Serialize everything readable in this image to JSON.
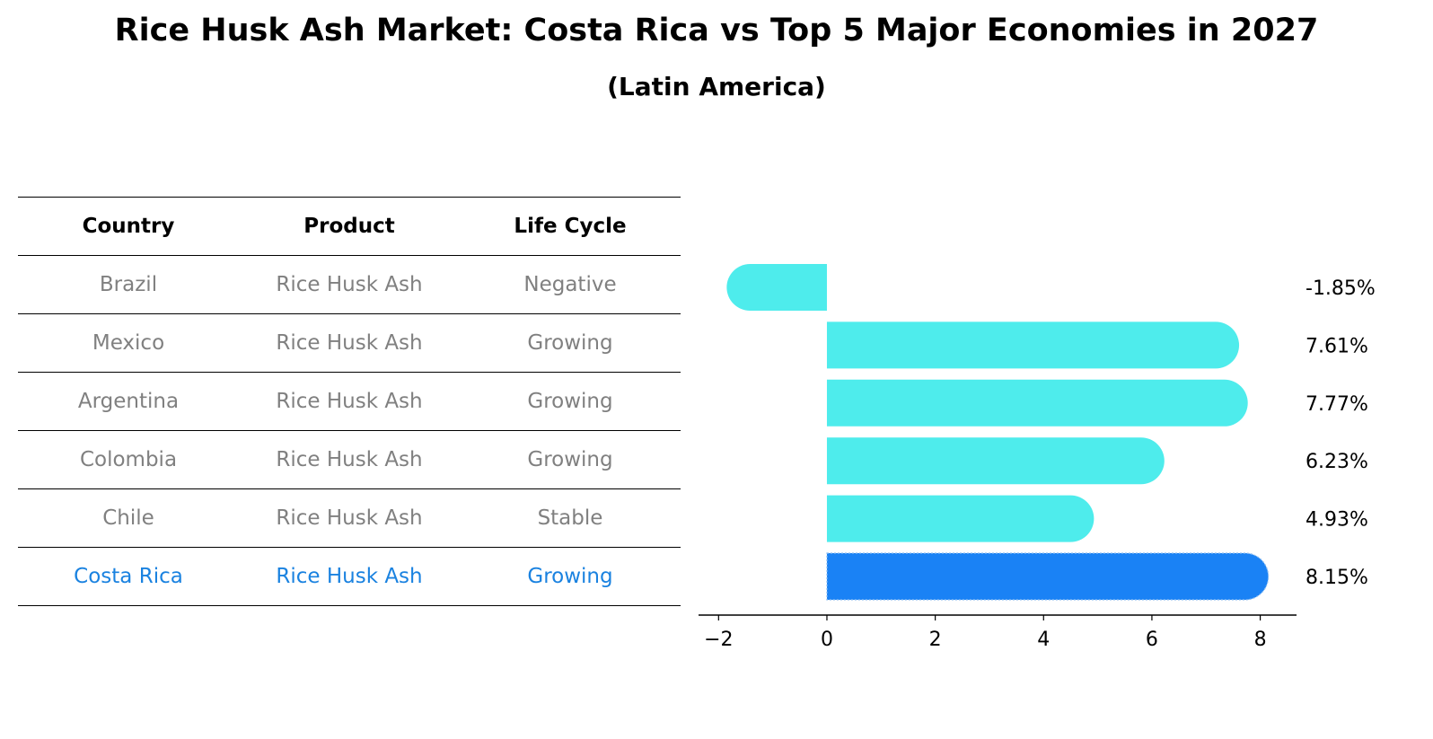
{
  "title": "Rice Husk Ash Market: Costa Rica vs Top 5 Major Economies in 2027",
  "subtitle": "(Latin America)",
  "table": {
    "headers": [
      "Country",
      "Product",
      "Life Cycle"
    ],
    "rows": [
      {
        "country": "Brazil",
        "product": "Rice Husk Ash",
        "life_cycle": "Negative"
      },
      {
        "country": "Mexico",
        "product": "Rice Husk Ash",
        "life_cycle": "Growing"
      },
      {
        "country": "Argentina",
        "product": "Rice Husk Ash",
        "life_cycle": "Growing"
      },
      {
        "country": "Colombia",
        "product": "Rice Husk Ash",
        "life_cycle": "Growing"
      },
      {
        "country": "Chile",
        "product": "Rice Husk Ash",
        "life_cycle": "Stable"
      },
      {
        "country": "Costa Rica",
        "product": "Rice Husk Ash",
        "life_cycle": "Growing"
      }
    ]
  },
  "colors": {
    "bar": "#4eecec",
    "highlight": "#1a82f5",
    "highlight_text": "#1a82e0",
    "muted_text": "#808080"
  },
  "chart_data": {
    "type": "bar",
    "orientation": "horizontal",
    "categories": [
      "Brazil",
      "Mexico",
      "Argentina",
      "Colombia",
      "Chile",
      "Costa Rica"
    ],
    "values": [
      -1.85,
      7.61,
      7.77,
      6.23,
      4.93,
      8.15
    ],
    "value_labels": [
      "-1.85%",
      "7.61%",
      "7.77%",
      "6.23%",
      "4.93%",
      "8.15%"
    ],
    "highlight_category": "Costa Rica",
    "xlim": [
      -2.37,
      8.67
    ],
    "xticks": [
      -2,
      0,
      2,
      4,
      6,
      8
    ],
    "xtick_labels": [
      "−2",
      "0",
      "2",
      "4",
      "6",
      "8"
    ],
    "xlabel": "",
    "ylabel": "",
    "grid": false
  }
}
